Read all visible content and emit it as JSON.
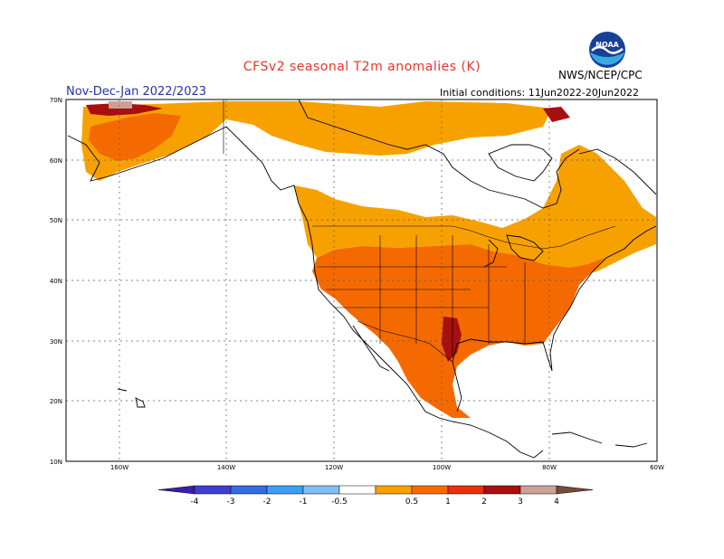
{
  "header": {
    "title": "CFSv2 seasonal T2m anomalies (K)",
    "period": "Nov-Dec-Jan 2022/2023",
    "initial_conditions": "Initial conditions: 11Jun2022-20Jun2022",
    "agency": "NWS/NCEP/CPC",
    "logo_text": "NOAA"
  },
  "map": {
    "lon_labels": [
      "160W",
      "140W",
      "120W",
      "100W",
      "80W",
      "60W"
    ],
    "lat_labels": [
      "70N",
      "60N",
      "50N",
      "40N",
      "30N",
      "20N",
      "10N"
    ]
  },
  "legend": {
    "labels": [
      "-4",
      "-3",
      "-2",
      "-1",
      "-0.5",
      "0.5",
      "1",
      "2",
      "3",
      "4"
    ],
    "colors": [
      "#3a1fa8",
      "#3f3fcf",
      "#2f6de0",
      "#3f9ef0",
      "#7fc0f8",
      "#ffffff",
      "#f7a100",
      "#f56a00",
      "#e8310b",
      "#a80f0f",
      "#cba096",
      "#7a4a3a"
    ]
  }
}
